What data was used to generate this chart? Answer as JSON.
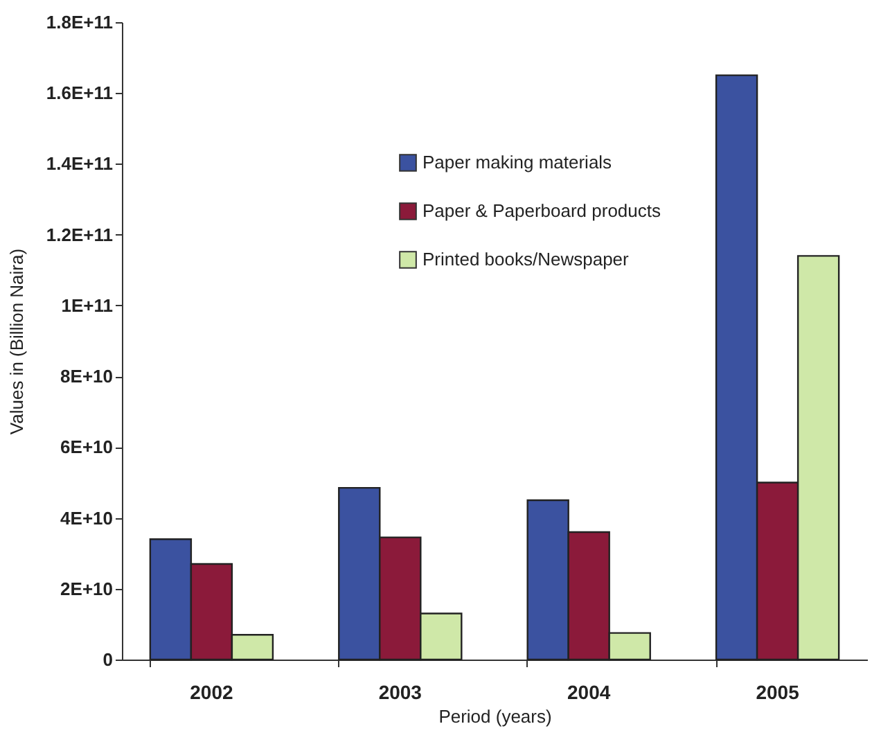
{
  "chart_data": {
    "type": "bar",
    "categories": [
      "2002",
      "2003",
      "2004",
      "2005"
    ],
    "xlabel": "Period (years)",
    "ylabel": "Values in (Billion Naira)",
    "series": [
      {
        "name": "Paper making materials",
        "color": "#3b52a0",
        "values": [
          34000000000,
          48500000000,
          45000000000,
          165000000000
        ]
      },
      {
        "name": "Paper & Paperboard products",
        "color": "#8b1a3a",
        "values": [
          27000000000,
          34500000000,
          36000000000,
          50000000000
        ]
      },
      {
        "name": "Printed books/Newspaper",
        "color": "#cfe8a8",
        "values": [
          7000000000,
          13000000000,
          7500000000,
          114000000000
        ]
      }
    ],
    "ylim": [
      0,
      180000000000
    ],
    "yticks": [
      0,
      {
        "value": 20000000000,
        "label": "2E+10"
      },
      {
        "value": 40000000000,
        "label": "4E+10"
      },
      {
        "value": 60000000000,
        "label": "6E+10"
      },
      {
        "value": 80000000000,
        "label": "8E+10"
      },
      {
        "value": 100000000000,
        "label": "1E+11"
      },
      {
        "value": 120000000000,
        "label": "1.2E+11"
      },
      {
        "value": 140000000000,
        "label": "1.4E+11"
      },
      {
        "value": 160000000000,
        "label": "1.6E+11"
      },
      {
        "value": 180000000000,
        "label": "1.8E+11"
      }
    ],
    "grid": false,
    "legend": "top left"
  }
}
